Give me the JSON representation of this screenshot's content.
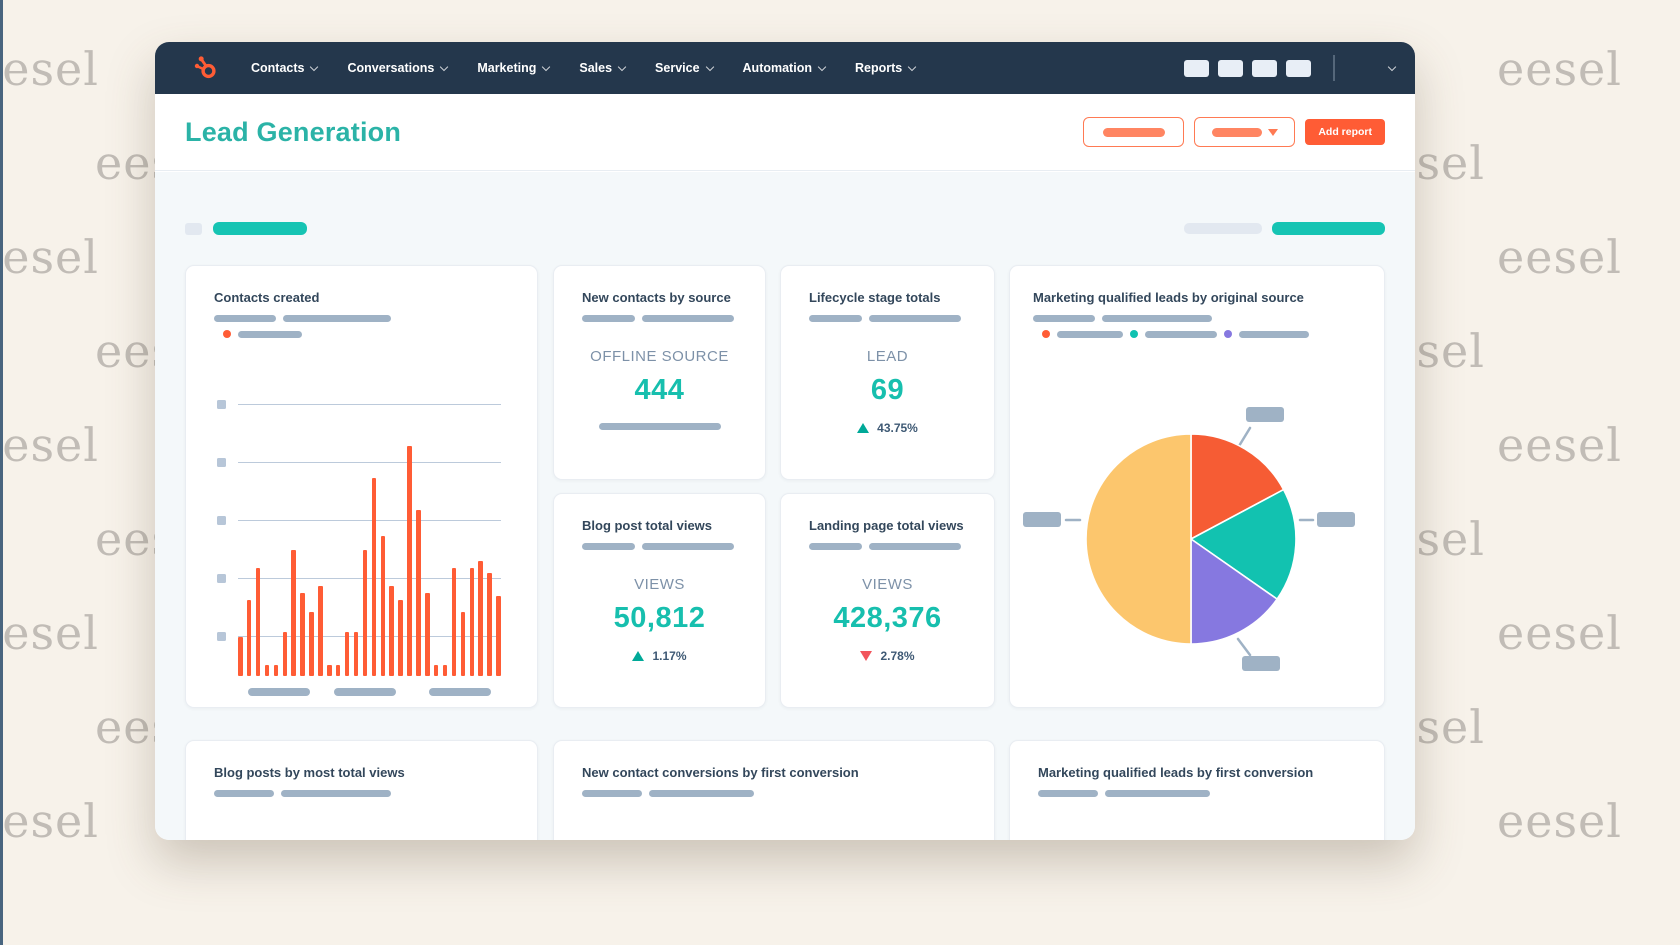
{
  "watermark": {
    "text": "eesel"
  },
  "nav": {
    "items": [
      {
        "label": "Contacts"
      },
      {
        "label": "Conversations"
      },
      {
        "label": "Marketing"
      },
      {
        "label": "Sales"
      },
      {
        "label": "Service"
      },
      {
        "label": "Automation"
      },
      {
        "label": "Reports"
      }
    ]
  },
  "header": {
    "title": "Lead Generation",
    "add_report_label": "Add report"
  },
  "cards": {
    "contacts_created": {
      "title": "Contacts created"
    },
    "new_contacts_by_source": {
      "title": "New contacts by source",
      "metric_label": "OFFLINE SOURCE",
      "metric_value": "444"
    },
    "lifecycle_stage_totals": {
      "title": "Lifecycle stage totals",
      "metric_label": "LEAD",
      "metric_value": "69",
      "delta_value": "43.75%",
      "delta_direction": "up"
    },
    "blog_post_total_views": {
      "title": "Blog post total views",
      "metric_label": "VIEWS",
      "metric_value": "50,812",
      "delta_value": "1.17%",
      "delta_direction": "up"
    },
    "landing_page_total_views": {
      "title": "Landing page total views",
      "metric_label": "VIEWS",
      "metric_value": "428,376",
      "delta_value": "2.78%",
      "delta_direction": "down"
    },
    "mql_by_original_source": {
      "title": "Marketing qualified leads by original source"
    },
    "blog_posts_by_most_total_views": {
      "title": "Blog posts by most total views"
    },
    "new_contact_conversions_by_first_conversion": {
      "title": "New contact conversions by first conversion"
    },
    "mql_by_first_conversion": {
      "title": "Marketing qualified leads by first conversion"
    }
  },
  "colors": {
    "navy": "#24374c",
    "orange": "#ff5c35",
    "teal_accent": "#17bfae",
    "title_teal": "#2bb3a7",
    "chip_teal": "#16c4b3",
    "purple": "#8678e0",
    "yellow": "#fcc66d",
    "pill_gray": "#9fb2c5",
    "chip_gray": "#e2e8f0",
    "delta_up": "#00a998",
    "delta_down": "#f2545b",
    "text_dark": "#33475b",
    "text_gray": "#7d91a8",
    "page_bg": "#f7f2ea",
    "content_bg": "#f4f8fa"
  },
  "chart_data": [
    {
      "type": "bar",
      "title": "Contacts created",
      "values": [
        17,
        33,
        47,
        5,
        5,
        19,
        55,
        36,
        28,
        39,
        5,
        5,
        19,
        19,
        55,
        86,
        61,
        39,
        33,
        100,
        72,
        36,
        5,
        5,
        47,
        28,
        47,
        50,
        45,
        35
      ],
      "values_unit": "relative (no numeric axis labels shown; ticks and x labels are placeholder shapes)",
      "ylim": [
        0,
        100
      ],
      "bar_color": "#ff5c35",
      "grid": true,
      "legend": "one orange-dot placeholder entry"
    },
    {
      "type": "pie",
      "title": "Marketing qualified leads by original source",
      "values": [
        17.2,
        17.5,
        15.3,
        50
      ],
      "colors": [
        "#f65c34",
        "#12c2b0",
        "#8678e0",
        "#fcc66d"
      ],
      "start_angle_deg": 0,
      "clockwise": true,
      "legend": "three placeholder entries with orange, teal and purple dots",
      "callouts": "four gray placeholder labels around the pie"
    }
  ]
}
